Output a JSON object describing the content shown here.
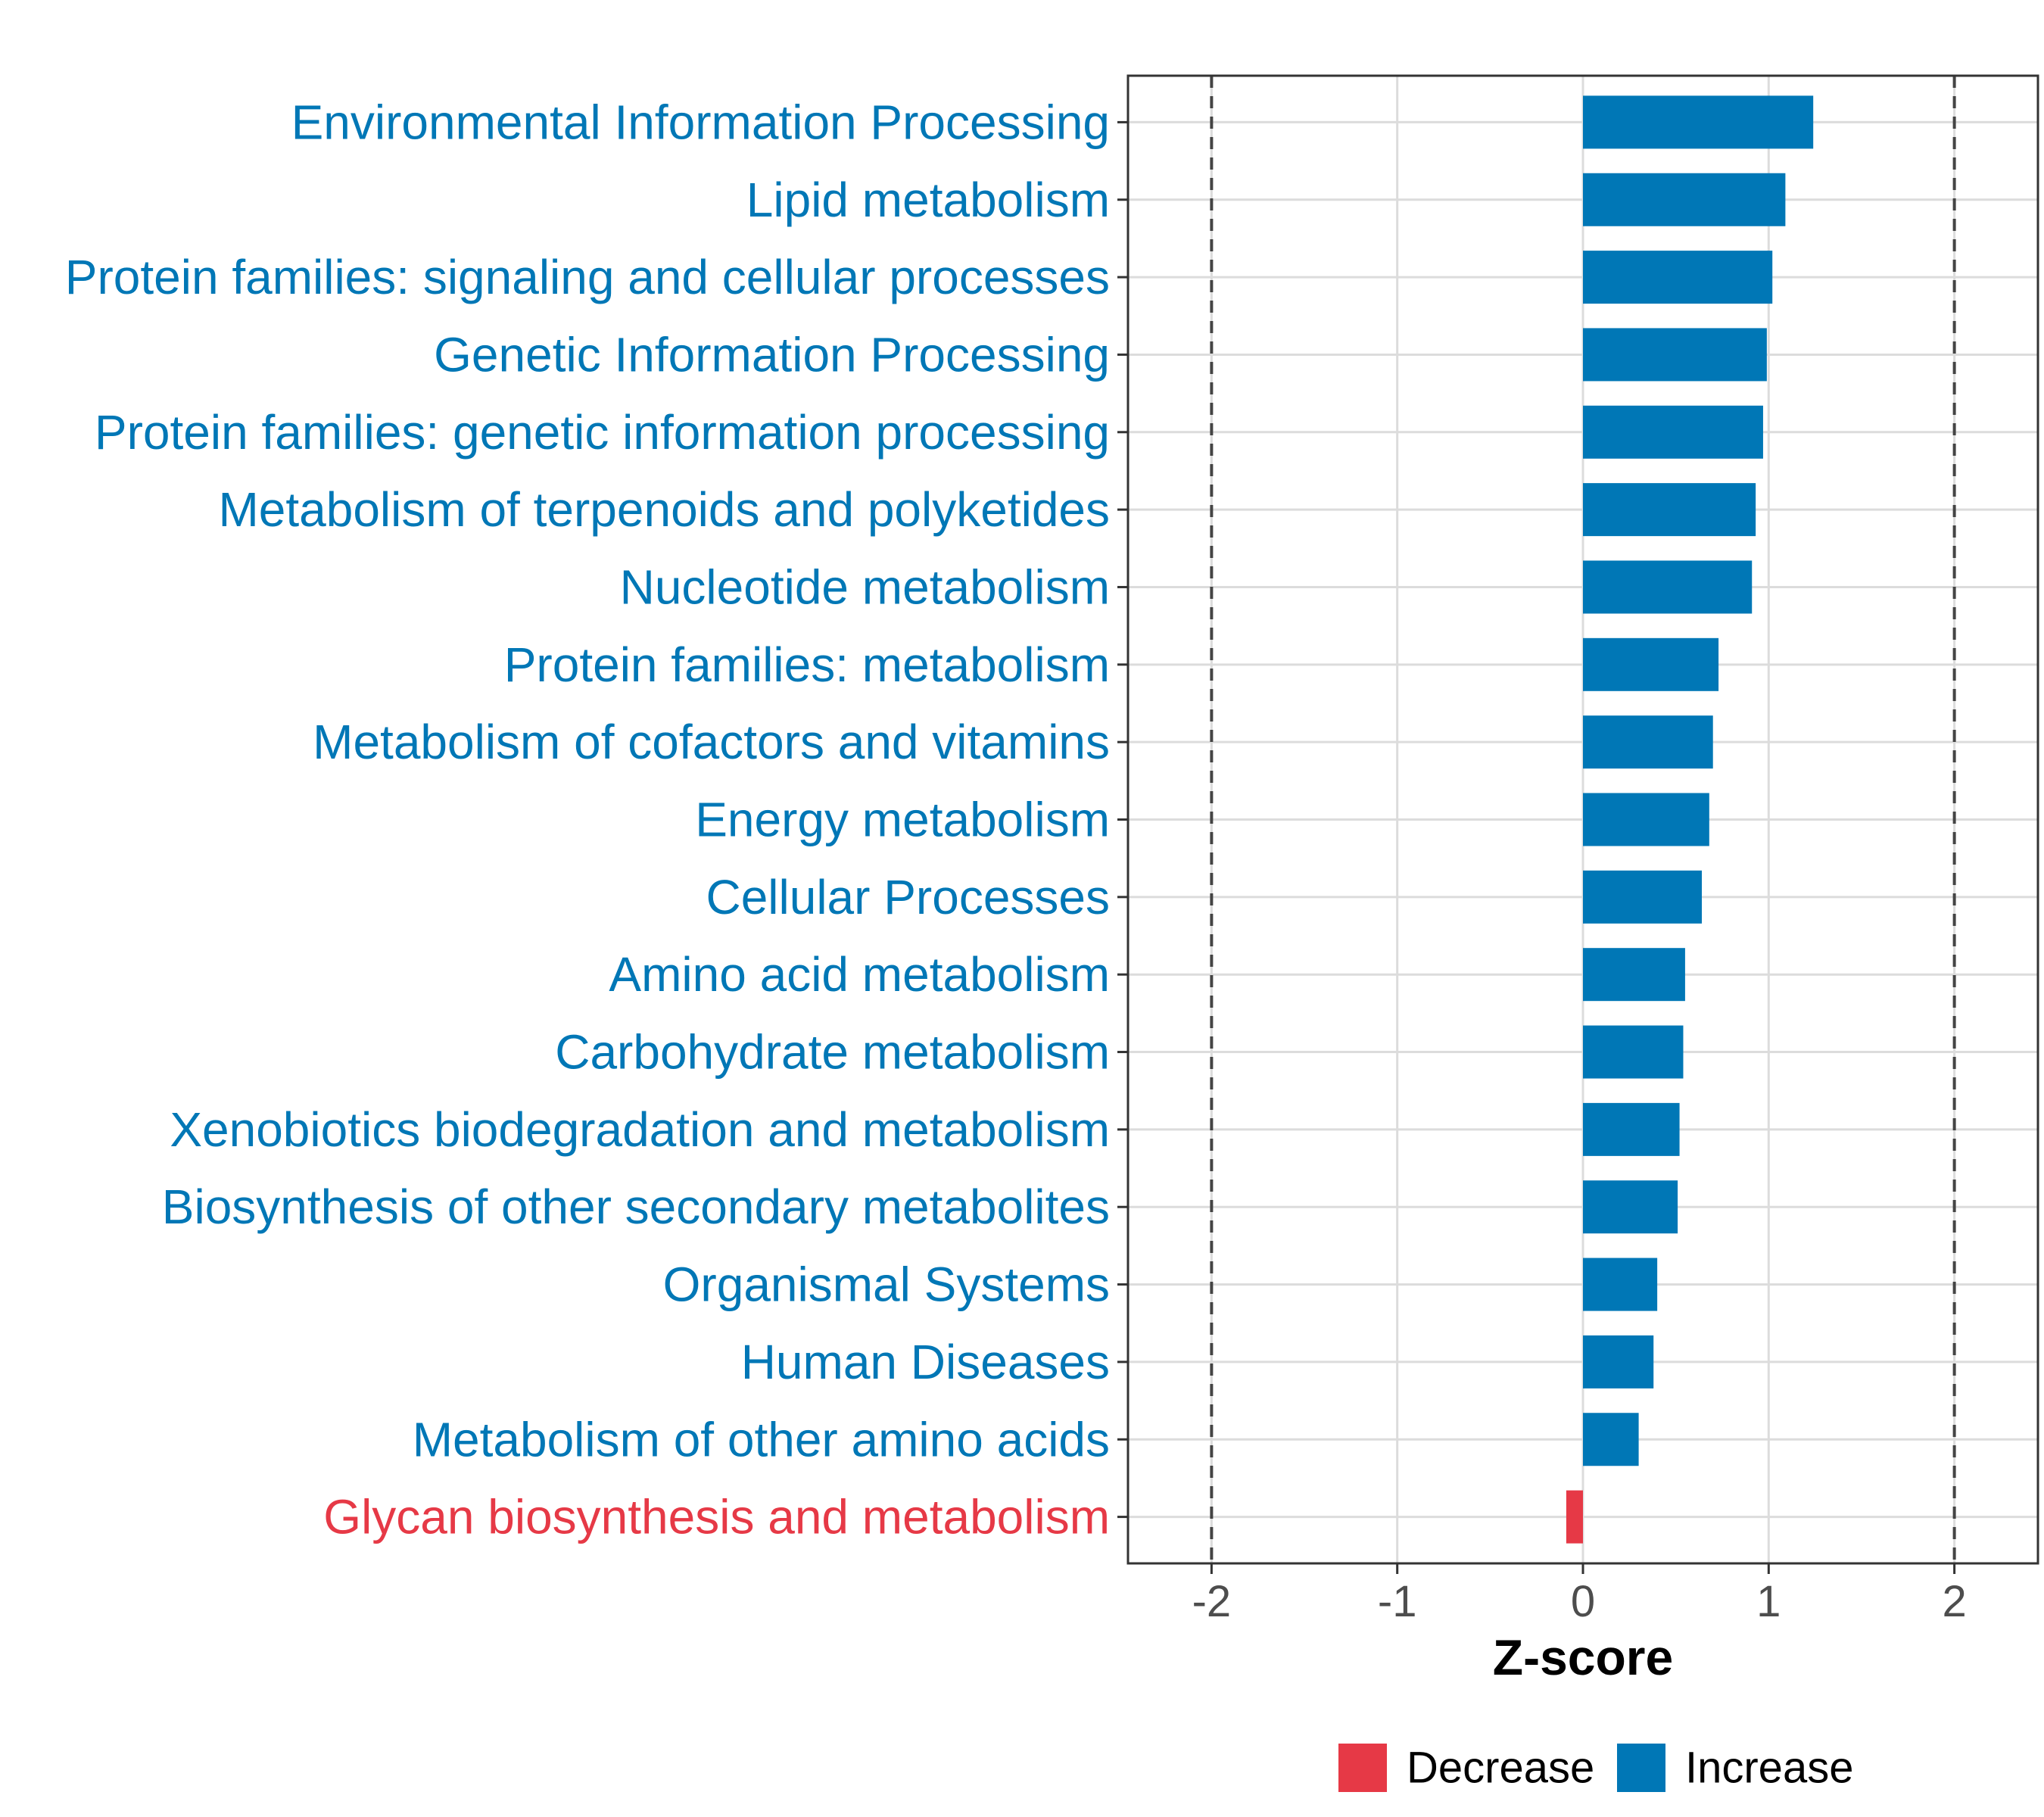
{
  "chart_data": {
    "type": "bar",
    "orientation": "horizontal",
    "title": "",
    "xlabel": "Z-score",
    "ylabel": "",
    "xlim": [
      -2.45,
      2.45
    ],
    "xticks": [
      -2,
      -1,
      0,
      1,
      2
    ],
    "xtick_labels": [
      "-2",
      "-1",
      "0",
      "1",
      "2"
    ],
    "reference_lines": [
      -2,
      2
    ],
    "grid": true,
    "categories": [
      "Environmental Information Processing",
      "Lipid metabolism",
      "Protein families: signaling and cellular processes",
      "Genetic Information Processing",
      "Protein families: genetic information processing",
      "Metabolism of terpenoids and polyketides",
      "Nucleotide metabolism",
      "Protein families: metabolism",
      "Metabolism of cofactors and vitamins",
      "Energy metabolism",
      "Cellular Processes",
      "Amino acid metabolism",
      "Carbohydrate metabolism",
      "Xenobiotics biodegradation and metabolism",
      "Biosynthesis of other secondary metabolites",
      "Organismal Systems",
      "Human Diseases",
      "Metabolism of other amino acids",
      "Glycan biosynthesis and metabolism"
    ],
    "values": [
      1.24,
      1.09,
      1.02,
      0.99,
      0.97,
      0.93,
      0.91,
      0.73,
      0.7,
      0.68,
      0.64,
      0.55,
      0.54,
      0.52,
      0.51,
      0.4,
      0.38,
      0.3,
      -0.09
    ],
    "groups": [
      "Increase",
      "Increase",
      "Increase",
      "Increase",
      "Increase",
      "Increase",
      "Increase",
      "Increase",
      "Increase",
      "Increase",
      "Increase",
      "Increase",
      "Increase",
      "Increase",
      "Increase",
      "Increase",
      "Increase",
      "Increase",
      "Decrease"
    ],
    "legend": {
      "position": "bottom",
      "entries": [
        {
          "label": "Decrease",
          "color": "#E63946"
        },
        {
          "label": "Increase",
          "color": "#0077B6"
        }
      ]
    },
    "colors": {
      "Increase": "#0077B6",
      "Decrease": "#E63946"
    }
  }
}
